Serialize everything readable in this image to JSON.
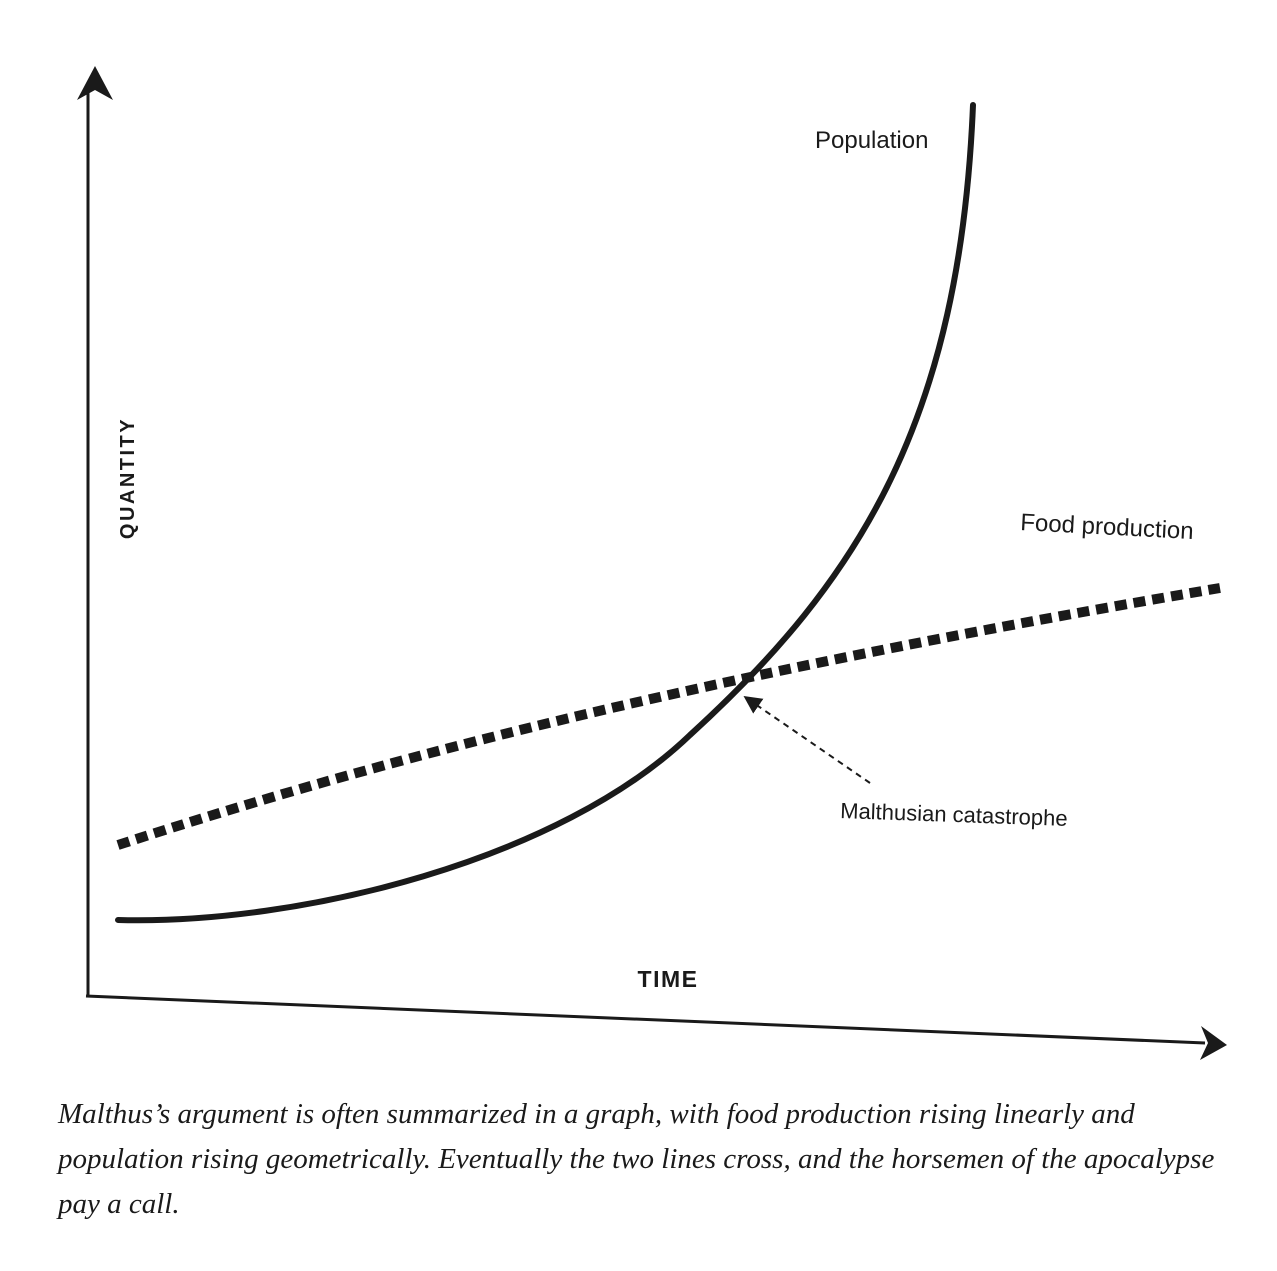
{
  "diagram": {
    "axis_labels": {
      "y": "QUANTITY",
      "x": "TIME"
    },
    "curves": {
      "population_label": "Population",
      "food_label": "Food production"
    },
    "annotation": {
      "text": "Malthusian catastrophe"
    }
  },
  "caption": {
    "text": "Malthus’s argument is often summarized in a graph, with food production rising linearly and population rising geometrically. Eventually the two lines cross, and the horsemen of the apocalypse pay a call."
  }
}
